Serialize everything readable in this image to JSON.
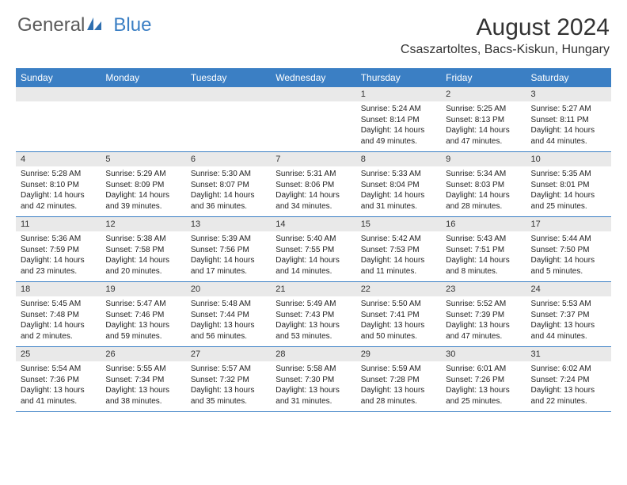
{
  "brand": {
    "part1": "General",
    "part2": "Blue"
  },
  "title": "August 2024",
  "location": "Csaszartoltes, Bacs-Kiskun, Hungary",
  "colors": {
    "header_bg": "#3b7fc4",
    "header_text": "#ffffff",
    "daynum_bg": "#e9e9e9",
    "rule": "#3b7fc4",
    "body_text": "#222222",
    "title_text": "#333333",
    "logo_gray": "#5a5a5a",
    "logo_blue": "#3b7fc4",
    "background": "#ffffff"
  },
  "typography": {
    "month_title_fontsize": 30,
    "location_fontsize": 16,
    "dayhdr_fontsize": 12,
    "daynum_fontsize": 11,
    "cell_fontsize": 10,
    "logo_fontsize": 24
  },
  "day_headers": [
    "Sunday",
    "Monday",
    "Tuesday",
    "Wednesday",
    "Thursday",
    "Friday",
    "Saturday"
  ],
  "weeks": [
    [
      null,
      null,
      null,
      null,
      {
        "n": "1",
        "sr": "5:24 AM",
        "ss": "8:14 PM",
        "dl": "14 hours and 49 minutes."
      },
      {
        "n": "2",
        "sr": "5:25 AM",
        "ss": "8:13 PM",
        "dl": "14 hours and 47 minutes."
      },
      {
        "n": "3",
        "sr": "5:27 AM",
        "ss": "8:11 PM",
        "dl": "14 hours and 44 minutes."
      }
    ],
    [
      {
        "n": "4",
        "sr": "5:28 AM",
        "ss": "8:10 PM",
        "dl": "14 hours and 42 minutes."
      },
      {
        "n": "5",
        "sr": "5:29 AM",
        "ss": "8:09 PM",
        "dl": "14 hours and 39 minutes."
      },
      {
        "n": "6",
        "sr": "5:30 AM",
        "ss": "8:07 PM",
        "dl": "14 hours and 36 minutes."
      },
      {
        "n": "7",
        "sr": "5:31 AM",
        "ss": "8:06 PM",
        "dl": "14 hours and 34 minutes."
      },
      {
        "n": "8",
        "sr": "5:33 AM",
        "ss": "8:04 PM",
        "dl": "14 hours and 31 minutes."
      },
      {
        "n": "9",
        "sr": "5:34 AM",
        "ss": "8:03 PM",
        "dl": "14 hours and 28 minutes."
      },
      {
        "n": "10",
        "sr": "5:35 AM",
        "ss": "8:01 PM",
        "dl": "14 hours and 25 minutes."
      }
    ],
    [
      {
        "n": "11",
        "sr": "5:36 AM",
        "ss": "7:59 PM",
        "dl": "14 hours and 23 minutes."
      },
      {
        "n": "12",
        "sr": "5:38 AM",
        "ss": "7:58 PM",
        "dl": "14 hours and 20 minutes."
      },
      {
        "n": "13",
        "sr": "5:39 AM",
        "ss": "7:56 PM",
        "dl": "14 hours and 17 minutes."
      },
      {
        "n": "14",
        "sr": "5:40 AM",
        "ss": "7:55 PM",
        "dl": "14 hours and 14 minutes."
      },
      {
        "n": "15",
        "sr": "5:42 AM",
        "ss": "7:53 PM",
        "dl": "14 hours and 11 minutes."
      },
      {
        "n": "16",
        "sr": "5:43 AM",
        "ss": "7:51 PM",
        "dl": "14 hours and 8 minutes."
      },
      {
        "n": "17",
        "sr": "5:44 AM",
        "ss": "7:50 PM",
        "dl": "14 hours and 5 minutes."
      }
    ],
    [
      {
        "n": "18",
        "sr": "5:45 AM",
        "ss": "7:48 PM",
        "dl": "14 hours and 2 minutes."
      },
      {
        "n": "19",
        "sr": "5:47 AM",
        "ss": "7:46 PM",
        "dl": "13 hours and 59 minutes."
      },
      {
        "n": "20",
        "sr": "5:48 AM",
        "ss": "7:44 PM",
        "dl": "13 hours and 56 minutes."
      },
      {
        "n": "21",
        "sr": "5:49 AM",
        "ss": "7:43 PM",
        "dl": "13 hours and 53 minutes."
      },
      {
        "n": "22",
        "sr": "5:50 AM",
        "ss": "7:41 PM",
        "dl": "13 hours and 50 minutes."
      },
      {
        "n": "23",
        "sr": "5:52 AM",
        "ss": "7:39 PM",
        "dl": "13 hours and 47 minutes."
      },
      {
        "n": "24",
        "sr": "5:53 AM",
        "ss": "7:37 PM",
        "dl": "13 hours and 44 minutes."
      }
    ],
    [
      {
        "n": "25",
        "sr": "5:54 AM",
        "ss": "7:36 PM",
        "dl": "13 hours and 41 minutes."
      },
      {
        "n": "26",
        "sr": "5:55 AM",
        "ss": "7:34 PM",
        "dl": "13 hours and 38 minutes."
      },
      {
        "n": "27",
        "sr": "5:57 AM",
        "ss": "7:32 PM",
        "dl": "13 hours and 35 minutes."
      },
      {
        "n": "28",
        "sr": "5:58 AM",
        "ss": "7:30 PM",
        "dl": "13 hours and 31 minutes."
      },
      {
        "n": "29",
        "sr": "5:59 AM",
        "ss": "7:28 PM",
        "dl": "13 hours and 28 minutes."
      },
      {
        "n": "30",
        "sr": "6:01 AM",
        "ss": "7:26 PM",
        "dl": "13 hours and 25 minutes."
      },
      {
        "n": "31",
        "sr": "6:02 AM",
        "ss": "7:24 PM",
        "dl": "13 hours and 22 minutes."
      }
    ]
  ],
  "labels": {
    "sunrise": "Sunrise:",
    "sunset": "Sunset:",
    "daylight": "Daylight:"
  }
}
